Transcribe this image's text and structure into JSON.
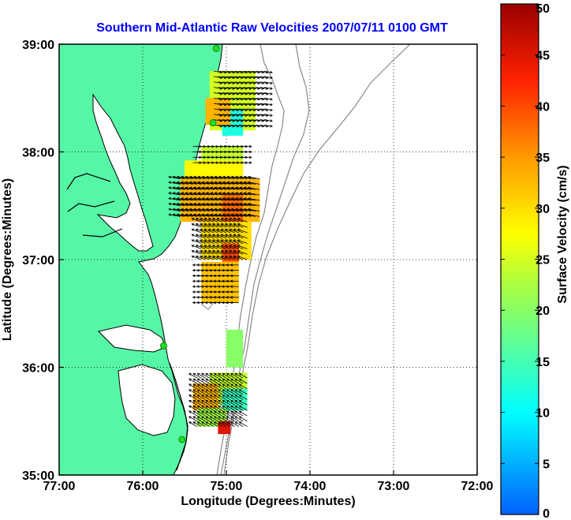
{
  "title": "Southern Mid-Atlantic Raw Velocities 2007/07/11 0100 GMT",
  "colors": {
    "title": "#0000ff",
    "land": "#55f7a6",
    "coast": "#000000",
    "bathymetry": "#8a8a8a",
    "station": "#22dd22",
    "arrow": "#000000",
    "grid": "#000000"
  },
  "x_axis": {
    "label": "Longitude (Degrees:Minutes)",
    "range": [
      -77,
      -72
    ],
    "ticks": [
      {
        "value": -77,
        "label": "77:00"
      },
      {
        "value": -76,
        "label": "76:00"
      },
      {
        "value": -75,
        "label": "75:00"
      },
      {
        "value": -74,
        "label": "74:00"
      },
      {
        "value": -73,
        "label": "73:00"
      },
      {
        "value": -72,
        "label": "72:00"
      }
    ]
  },
  "y_axis": {
    "label": "Latitude (Degrees:Minutes)",
    "range": [
      35,
      39
    ],
    "ticks": [
      {
        "value": 39,
        "label": "39:00"
      },
      {
        "value": 38,
        "label": "38:00"
      },
      {
        "value": 37,
        "label": "37:00"
      },
      {
        "value": 36,
        "label": "36:00"
      },
      {
        "value": 35,
        "label": "35:00"
      }
    ]
  },
  "colorbar": {
    "label": "Surface Velocity (cm/s)",
    "range": [
      0,
      50
    ],
    "ticks": [
      {
        "value": 50,
        "label": "50"
      },
      {
        "value": 45,
        "label": "45"
      },
      {
        "value": 40,
        "label": "40"
      },
      {
        "value": 35,
        "label": "35"
      },
      {
        "value": 30,
        "label": "30"
      },
      {
        "value": 25,
        "label": "25"
      },
      {
        "value": 20,
        "label": "20"
      },
      {
        "value": 15,
        "label": "15"
      },
      {
        "value": 10,
        "label": "10"
      },
      {
        "value": 5,
        "label": "5"
      },
      {
        "value": 0,
        "label": "0"
      }
    ]
  },
  "grid_lines": true,
  "hf_radar_stations": [
    {
      "lon": -75.12,
      "lat": 38.96
    },
    {
      "lon": -75.16,
      "lat": 38.27
    },
    {
      "lon": -75.75,
      "lat": 36.2
    },
    {
      "lon": -75.53,
      "lat": 35.33
    }
  ],
  "velocity_regions": [
    {
      "lon_range": [
        -75.2,
        -74.65
      ],
      "lat_range": [
        38.2,
        38.75
      ],
      "speed": 25
    },
    {
      "lon_range": [
        -75.05,
        -74.8
      ],
      "lat_range": [
        38.15,
        38.4
      ],
      "speed": 12
    },
    {
      "lon_range": [
        -75.25,
        -74.95
      ],
      "lat_range": [
        38.25,
        38.5
      ],
      "speed": 33
    },
    {
      "lon_range": [
        -75.3,
        -74.8
      ],
      "lat_range": [
        37.9,
        38.05
      ],
      "speed": 24
    },
    {
      "lon_range": [
        -75.5,
        -74.8
      ],
      "lat_range": [
        37.7,
        37.92
      ],
      "speed": 28
    },
    {
      "lon_range": [
        -75.55,
        -74.6
      ],
      "lat_range": [
        37.35,
        37.75
      ],
      "speed": 33
    },
    {
      "lon_range": [
        -75.05,
        -74.8
      ],
      "lat_range": [
        37.35,
        37.6
      ],
      "speed": 38
    },
    {
      "lon_range": [
        -75.3,
        -74.7
      ],
      "lat_range": [
        37.0,
        37.35
      ],
      "speed": 30
    },
    {
      "lon_range": [
        -75.05,
        -74.85
      ],
      "lat_range": [
        36.98,
        37.15
      ],
      "speed": 40
    },
    {
      "lon_range": [
        -75.3,
        -74.85
      ],
      "lat_range": [
        36.6,
        36.98
      ],
      "speed": 32
    },
    {
      "lon_range": [
        -75.0,
        -74.8
      ],
      "lat_range": [
        36.0,
        36.35
      ],
      "speed": 20
    },
    {
      "lon_range": [
        -75.2,
        -74.75
      ],
      "lat_range": [
        35.65,
        35.95
      ],
      "speed": 24
    },
    {
      "lon_range": [
        -75.4,
        -75.1
      ],
      "lat_range": [
        35.6,
        35.85
      ],
      "speed": 33
    },
    {
      "lon_range": [
        -75.05,
        -74.75
      ],
      "lat_range": [
        35.6,
        35.8
      ],
      "speed": 14
    },
    {
      "lon_range": [
        -75.35,
        -75.0
      ],
      "lat_range": [
        35.45,
        35.62
      ],
      "speed": 22
    },
    {
      "lon_range": [
        -75.1,
        -74.95
      ],
      "lat_range": [
        35.38,
        35.5
      ],
      "speed": 45
    }
  ],
  "vector_fields": [
    {
      "lon_range": [
        -75.15,
        -74.55
      ],
      "lat_range": [
        38.25,
        38.78
      ],
      "dir_deg": -10,
      "length": 0.1
    },
    {
      "lon_range": [
        -75.4,
        -74.8
      ],
      "lat_range": [
        37.9,
        38.05
      ],
      "dir_deg": 0,
      "length": 0.1
    },
    {
      "lon_range": [
        -75.55,
        -74.6
      ],
      "lat_range": [
        37.4,
        37.75
      ],
      "dir_deg": 170,
      "length": 0.14
    },
    {
      "lon_range": [
        -75.3,
        -74.75
      ],
      "lat_range": [
        37.0,
        37.35
      ],
      "dir_deg": 160,
      "length": 0.12
    },
    {
      "lon_range": [
        -75.3,
        -74.85
      ],
      "lat_range": [
        36.6,
        36.95
      ],
      "dir_deg": 180,
      "length": 0.1
    },
    {
      "lon_range": [
        -75.35,
        -74.75
      ],
      "lat_range": [
        35.45,
        35.9
      ],
      "dir_deg": 150,
      "length": 0.11
    }
  ]
}
